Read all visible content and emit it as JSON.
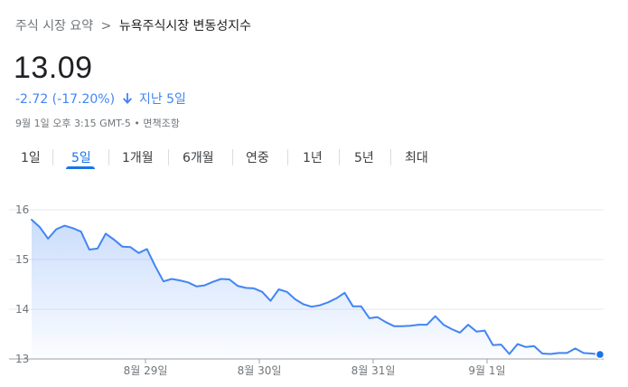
{
  "breadcrumb": {
    "parent": "주식 시장 요약",
    "separator": ">",
    "current": "뉴욕주식시장 변동성지수"
  },
  "quote": {
    "price": "13.09",
    "change": "-2.72 (-17.20%)",
    "period": "지난 5일",
    "direction": "down",
    "meta": "9월 1일 오후 3:15 GMT-5 • 면책조항",
    "accent_color": "#4285f4"
  },
  "tabs": [
    {
      "label": "1일",
      "active": false
    },
    {
      "label": "5일",
      "active": true
    },
    {
      "label": "1개월",
      "active": false
    },
    {
      "label": "6개월",
      "active": false
    },
    {
      "label": "연중",
      "active": false
    },
    {
      "label": "1년",
      "active": false
    },
    {
      "label": "5년",
      "active": false
    },
    {
      "label": "최대",
      "active": false
    }
  ],
  "chart_data": {
    "type": "area",
    "title": "",
    "xlabel": "",
    "ylabel": "",
    "ylim": [
      13,
      16
    ],
    "yticks": [
      13,
      14,
      15,
      16
    ],
    "xtick_labels": [
      "8월 29일",
      "8월 30일",
      "8월 31일",
      "9월 1일"
    ],
    "grid": true,
    "line_color": "#4285f4",
    "series": [
      {
        "values": [
          15.8,
          15.65,
          15.42,
          15.61,
          15.68,
          15.63,
          15.56,
          15.2,
          15.22,
          15.52,
          15.4,
          15.26,
          15.25,
          15.13,
          15.21,
          14.87,
          14.56,
          14.61,
          14.58,
          14.54,
          14.46,
          14.48,
          14.55,
          14.61,
          14.6,
          14.47,
          14.43,
          14.42,
          14.35,
          14.17,
          14.4,
          14.35,
          14.2,
          14.1,
          14.05,
          14.08,
          14.14,
          14.22,
          14.33,
          14.06,
          14.06,
          13.82,
          13.84,
          13.74,
          13.66,
          13.66,
          13.67,
          13.69,
          13.69,
          13.86,
          13.69,
          13.6,
          13.53,
          13.69,
          13.55,
          13.57,
          13.28,
          13.29,
          13.1,
          13.3,
          13.24,
          13.26,
          13.11,
          13.1,
          13.12,
          13.12,
          13.21,
          13.12,
          13.11,
          13.09
        ]
      }
    ]
  }
}
